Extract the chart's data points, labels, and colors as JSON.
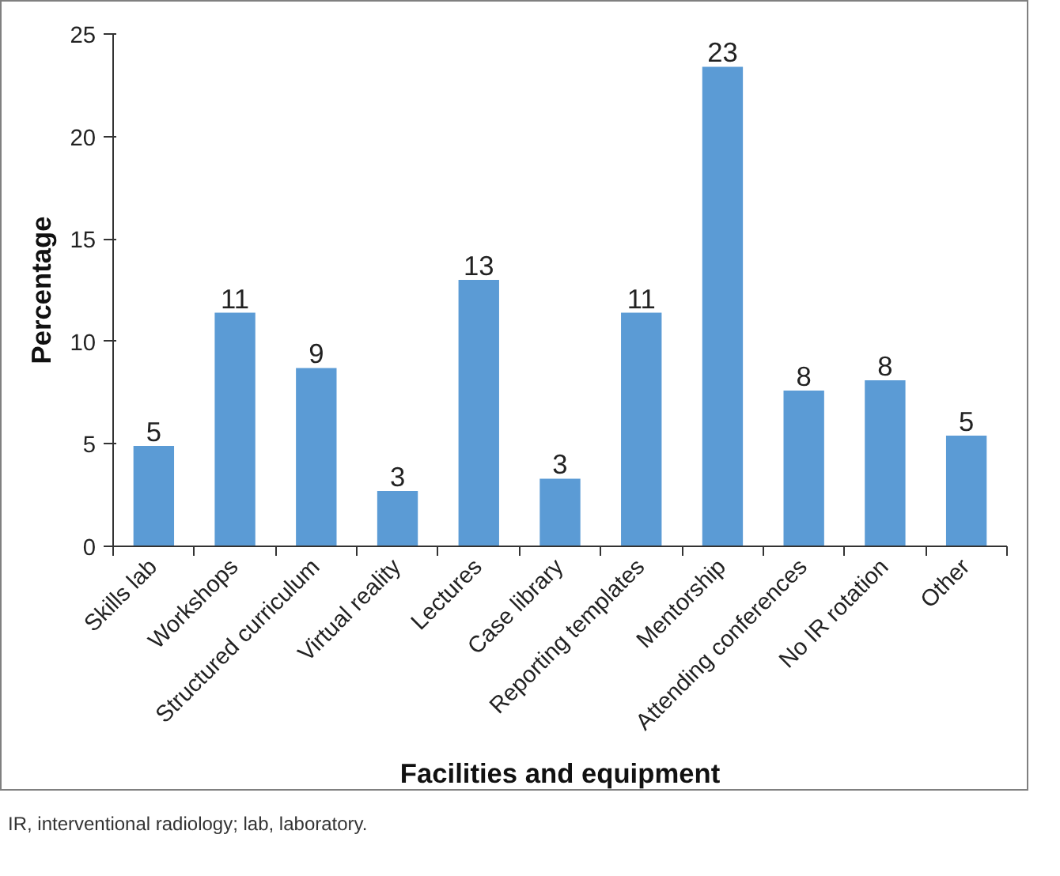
{
  "chart_data": {
    "type": "bar",
    "categories": [
      "Skills lab",
      "Workshops",
      "Structured curriculum",
      "Virtual reality",
      "Lectures",
      "Case library",
      "Reporting templates",
      "Mentorship",
      "Attending conferences",
      "No IR rotation",
      "Other"
    ],
    "values": [
      4.9,
      11.4,
      8.7,
      2.7,
      13.0,
      3.3,
      11.4,
      23.4,
      7.6,
      8.1,
      5.4
    ],
    "value_labels": [
      "5",
      "11",
      "9",
      "3",
      "13",
      "3",
      "11",
      "23",
      "8",
      "8",
      "5"
    ],
    "color": "#5b9bd5",
    "xlabel": "Facilities and equipment",
    "ylabel": "Percentage",
    "ylim": [
      0,
      25
    ],
    "yticks": [
      0,
      5,
      10,
      15,
      20,
      25
    ],
    "grid": false,
    "annotations": [
      "IR, interventional radiology; lab, laboratory."
    ]
  }
}
